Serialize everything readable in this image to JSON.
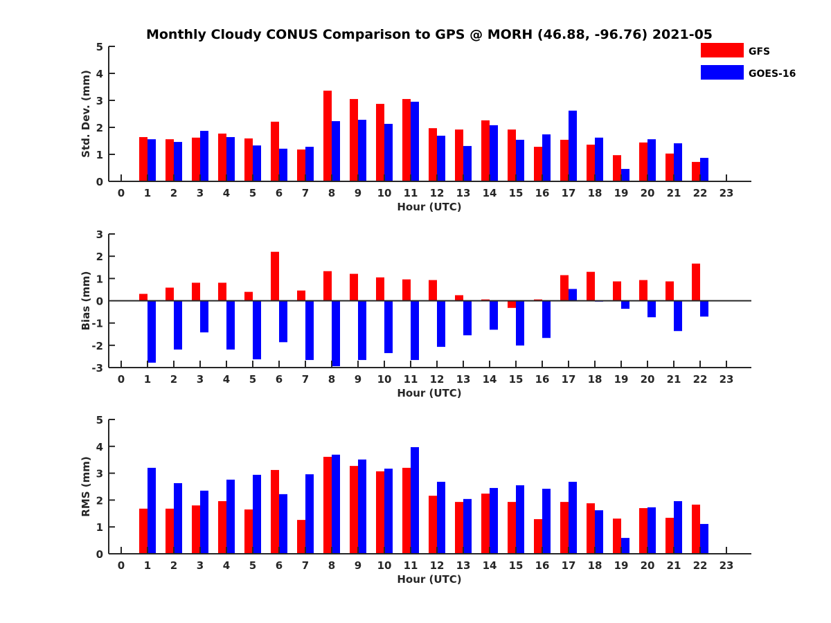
{
  "chart_data": {
    "type": "bar",
    "title": "Monthly Cloudy CONUS Comparison to GPS @ MORH (46.88, -96.76) 2021-05",
    "legend": {
      "placement": "top-right",
      "entries": [
        {
          "name": "GFS",
          "color": "#ff0000"
        },
        {
          "name": "GOES-16",
          "color": "#0000ff"
        }
      ]
    },
    "x": [
      0,
      1,
      2,
      3,
      4,
      5,
      6,
      7,
      8,
      9,
      10,
      11,
      12,
      13,
      14,
      15,
      16,
      17,
      18,
      19,
      20,
      21,
      22,
      23
    ],
    "x_tick_labels": [
      "0",
      "1",
      "2",
      "3",
      "4",
      "5",
      "6",
      "7",
      "8",
      "9",
      "10",
      "11",
      "12",
      "13",
      "14",
      "15",
      "16",
      "17",
      "18",
      "19",
      "20",
      "21",
      "22",
      "23"
    ],
    "panels": [
      {
        "id": "std",
        "xlabel": "Hour (UTC)",
        "ylabel": "Std. Dev. (mm)",
        "ylim": [
          0,
          5
        ],
        "yticks": [
          0,
          1,
          2,
          3,
          4,
          5
        ],
        "zero_line": false,
        "series": [
          {
            "name": "GFS",
            "values": [
              null,
              1.64,
              1.56,
              1.62,
              1.77,
              1.59,
              2.21,
              1.18,
              3.36,
              3.05,
              2.87,
              3.05,
              1.97,
              1.92,
              2.26,
              1.92,
              1.28,
              1.54,
              1.36,
              0.97,
              1.44,
              1.03,
              0.72,
              null
            ]
          },
          {
            "name": "GOES-16",
            "values": [
              null,
              1.56,
              1.46,
              1.87,
              1.64,
              1.33,
              1.21,
              1.28,
              2.23,
              2.28,
              2.13,
              2.95,
              1.69,
              1.31,
              2.08,
              1.54,
              1.74,
              2.62,
              1.62,
              0.46,
              1.56,
              1.41,
              0.87,
              null
            ]
          }
        ]
      },
      {
        "id": "bias",
        "xlabel": "Hour (UTC)",
        "ylabel": "Bias (mm)",
        "ylim": [
          -3,
          3
        ],
        "yticks": [
          -3,
          -2,
          -1,
          0,
          1,
          2,
          3
        ],
        "zero_line": true,
        "series": [
          {
            "name": "GFS",
            "values": [
              null,
              0.31,
              0.59,
              0.81,
              0.81,
              0.4,
              2.2,
              0.46,
              1.33,
              1.21,
              1.05,
              0.96,
              0.93,
              0.25,
              0.06,
              -0.32,
              0.06,
              1.15,
              1.3,
              0.87,
              0.93,
              0.87,
              1.67,
              null
            ]
          },
          {
            "name": "GOES-16",
            "values": [
              null,
              -2.78,
              -2.19,
              -1.42,
              -2.19,
              -2.63,
              -1.86,
              -2.66,
              -2.94,
              -2.66,
              -2.35,
              -2.66,
              -2.07,
              -1.55,
              -1.3,
              -2.01,
              -1.67,
              0.53,
              -0.04,
              -0.36,
              -0.74,
              -1.36,
              -0.71,
              null
            ]
          }
        ]
      },
      {
        "id": "rms",
        "xlabel": "Hour (UTC)",
        "ylabel": "RMS (mm)",
        "ylim": [
          0,
          5
        ],
        "yticks": [
          0,
          1,
          2,
          3,
          4,
          5
        ],
        "zero_line": false,
        "series": [
          {
            "name": "GFS",
            "values": [
              null,
              1.68,
              1.68,
              1.8,
              1.96,
              1.65,
              3.12,
              1.26,
              3.61,
              3.27,
              3.07,
              3.2,
              2.16,
              1.93,
              2.24,
              1.93,
              1.29,
              1.93,
              1.88,
              1.31,
              1.7,
              1.34,
              1.83,
              null
            ]
          },
          {
            "name": "GOES-16",
            "values": [
              null,
              3.2,
              2.63,
              2.35,
              2.76,
              2.94,
              2.22,
              2.96,
              3.69,
              3.51,
              3.17,
              3.97,
              2.68,
              2.04,
              2.45,
              2.55,
              2.42,
              2.68,
              1.62,
              0.59,
              1.73,
              1.96,
              1.11,
              null
            ]
          }
        ]
      }
    ]
  }
}
